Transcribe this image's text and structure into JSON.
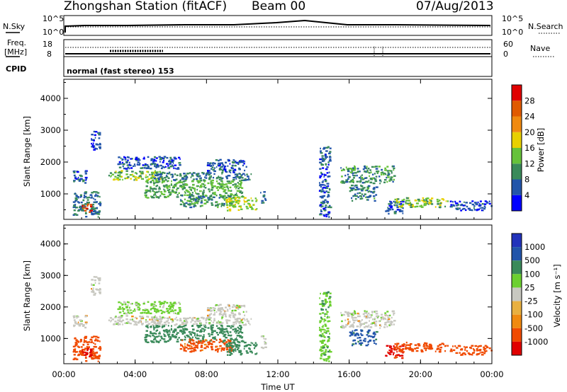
{
  "header": {
    "station": "Zhongshan Station (fitACF)",
    "beam": "Beam 00",
    "date": "07/Aug/2013"
  },
  "sky_panel": {
    "left_label": "N.Sky",
    "right_label": "N.Search",
    "left_ticks": [
      "10^5",
      "10^0"
    ],
    "right_ticks": [
      "10^5",
      "10^0"
    ]
  },
  "freq_panel": {
    "left_label_1": "Freq.",
    "left_label_2": "[MHz]",
    "right_label": "Nave",
    "left_ticks": [
      "18",
      "8"
    ],
    "right_ticks": [
      "60",
      "0"
    ]
  },
  "cpid": {
    "label": "CPID",
    "text": "normal (fast stereo) 153"
  },
  "colors": {
    "power": [
      "#0000ff",
      "#2255aa",
      "#3a8a5a",
      "#66c23a",
      "#e8d000",
      "#f08a10",
      "#e05a00",
      "#e00000"
    ],
    "velocity": [
      "#e00000",
      "#f04a00",
      "#f08a10",
      "#e8b040",
      "#c8c8c0",
      "#6cd030",
      "#3a8a5a",
      "#2255aa",
      "#2233bb"
    ]
  },
  "chart_data": [
    {
      "type": "heatmap",
      "parameter": "Power",
      "ylabel": "Slant Range [km]",
      "xlabel": "Time UT",
      "x_ticks": [
        "00:00",
        "04:00",
        "08:00",
        "12:00",
        "16:00",
        "20:00",
        "00:00"
      ],
      "y_ticks": [
        "1000",
        "2000",
        "3000",
        "4000"
      ],
      "ylim": [
        200,
        4600
      ],
      "colorbar_label": "Power [dB]",
      "colorbar_ticks": [
        "4",
        "8",
        "12",
        "16",
        "20",
        "24",
        "28"
      ],
      "colorbar_range": [
        0,
        32
      ],
      "echo_regions": [
        {
          "t0": 0.5,
          "t1": 2.0,
          "r0": 300,
          "r1": 1100,
          "level": 8
        },
        {
          "t0": 1.0,
          "t1": 1.5,
          "r0": 400,
          "r1": 700,
          "level": 28
        },
        {
          "t0": 0.5,
          "t1": 1.3,
          "r0": 1350,
          "r1": 1750,
          "level": 6
        },
        {
          "t0": 1.5,
          "t1": 2.0,
          "r0": 2400,
          "r1": 3000,
          "level": 5
        },
        {
          "t0": 2.5,
          "t1": 5.5,
          "r0": 1450,
          "r1": 1750,
          "level": 14
        },
        {
          "t0": 3.0,
          "t1": 6.5,
          "r0": 1800,
          "r1": 2200,
          "level": 6
        },
        {
          "t0": 4.5,
          "t1": 10.0,
          "r0": 900,
          "r1": 1450,
          "level": 12
        },
        {
          "t0": 5.0,
          "t1": 10.5,
          "r0": 1450,
          "r1": 1700,
          "level": 8
        },
        {
          "t0": 6.5,
          "t1": 9.5,
          "r0": 600,
          "r1": 1000,
          "level": 10
        },
        {
          "t0": 8.0,
          "t1": 10.2,
          "r0": 1700,
          "r1": 2100,
          "level": 6
        },
        {
          "t0": 9.0,
          "t1": 10.8,
          "r0": 500,
          "r1": 900,
          "level": 16
        },
        {
          "t0": 11.0,
          "t1": 11.3,
          "r0": 700,
          "r1": 1100,
          "level": 7
        },
        {
          "t0": 14.3,
          "t1": 14.9,
          "r0": 300,
          "r1": 2500,
          "level": 6
        },
        {
          "t0": 15.5,
          "t1": 18.5,
          "r0": 1350,
          "r1": 1900,
          "level": 10
        },
        {
          "t0": 16.0,
          "t1": 17.5,
          "r0": 800,
          "r1": 1300,
          "level": 9
        },
        {
          "t0": 18.0,
          "t1": 19.0,
          "r0": 400,
          "r1": 800,
          "level": 6
        },
        {
          "t0": 18.5,
          "t1": 21.5,
          "r0": 600,
          "r1": 900,
          "level": 14
        },
        {
          "t0": 21.5,
          "t1": 24.0,
          "r0": 500,
          "r1": 800,
          "level": 5
        }
      ]
    },
    {
      "type": "heatmap",
      "parameter": "Velocity",
      "ylabel": "Slant Range [km]",
      "xlabel": "Time UT",
      "x_ticks": [
        "00:00",
        "04:00",
        "08:00",
        "12:00",
        "16:00",
        "20:00",
        "00:00"
      ],
      "y_ticks": [
        "1000",
        "2000",
        "3000",
        "4000"
      ],
      "ylim": [
        200,
        4600
      ],
      "colorbar_label": "Velocity [m s⁻¹]",
      "colorbar_ticks": [
        "1000",
        "500",
        "100",
        "25",
        "-25",
        "-100",
        "-500",
        "-1000"
      ],
      "echo_regions": [
        {
          "t0": 0.5,
          "t1": 2.0,
          "r0": 300,
          "r1": 1100,
          "level": -300
        },
        {
          "t0": 1.0,
          "t1": 1.5,
          "r0": 400,
          "r1": 700,
          "level": -800
        },
        {
          "t0": 0.5,
          "t1": 1.3,
          "r0": 1350,
          "r1": 1750,
          "level": 0
        },
        {
          "t0": 1.5,
          "t1": 2.0,
          "r0": 2400,
          "r1": 3000,
          "level": 0
        },
        {
          "t0": 2.5,
          "t1": 5.5,
          "r0": 1450,
          "r1": 1750,
          "level": 0
        },
        {
          "t0": 3.0,
          "t1": 6.5,
          "r0": 1800,
          "r1": 2200,
          "level": 50
        },
        {
          "t0": 4.5,
          "t1": 10.0,
          "r0": 900,
          "r1": 1450,
          "level": 200
        },
        {
          "t0": 5.0,
          "t1": 10.5,
          "r0": 1450,
          "r1": 1700,
          "level": 0
        },
        {
          "t0": 6.5,
          "t1": 9.5,
          "r0": 600,
          "r1": 1000,
          "level": -150
        },
        {
          "t0": 8.0,
          "t1": 10.2,
          "r0": 1700,
          "r1": 2100,
          "level": 0
        },
        {
          "t0": 9.0,
          "t1": 10.8,
          "r0": 500,
          "r1": 900,
          "level": 300
        },
        {
          "t0": 11.0,
          "t1": 11.3,
          "r0": 700,
          "r1": 1100,
          "level": 0
        },
        {
          "t0": 14.3,
          "t1": 14.9,
          "r0": 300,
          "r1": 2500,
          "level": 80
        },
        {
          "t0": 15.5,
          "t1": 18.5,
          "r0": 1350,
          "r1": 1900,
          "level": 0
        },
        {
          "t0": 16.0,
          "t1": 17.5,
          "r0": 800,
          "r1": 1300,
          "level": 700
        },
        {
          "t0": 18.0,
          "t1": 19.0,
          "r0": 400,
          "r1": 800,
          "level": -600
        },
        {
          "t0": 18.5,
          "t1": 21.5,
          "r0": 600,
          "r1": 900,
          "level": -300
        },
        {
          "t0": 21.5,
          "t1": 24.0,
          "r0": 500,
          "r1": 800,
          "level": -200
        }
      ]
    }
  ]
}
